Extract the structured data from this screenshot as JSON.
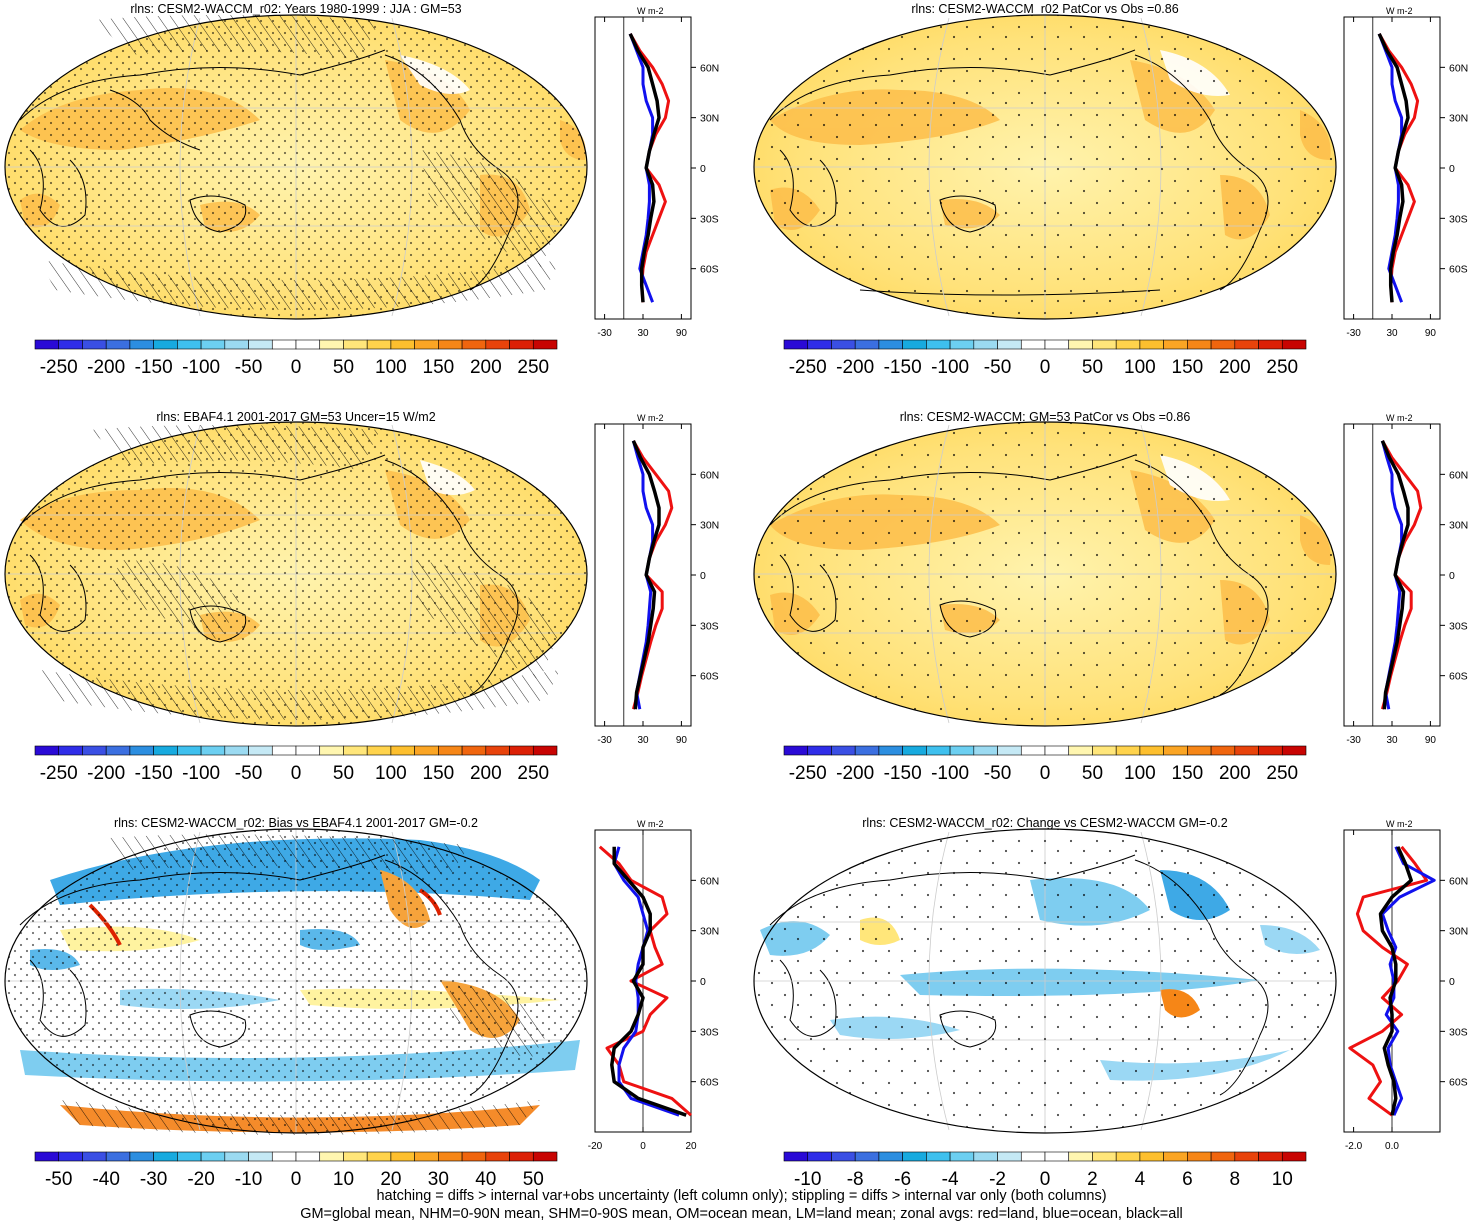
{
  "panels": [
    {
      "title": "rlns: CESM2-WACCM_r02: Years 1980-1999 : JJA : GM=53",
      "kind": "abs",
      "stipple": "dense",
      "hatch": true
    },
    {
      "title": "rlns: CESM2-WACCM_r02 PatCor vs Obs =0.86",
      "kind": "abs",
      "stipple": "sparse",
      "hatch": false
    },
    {
      "title": "rlns: EBAF4.1 2001-2017 GM=53 Uncer=15 W/m2",
      "kind": "abs",
      "stipple": "dense",
      "hatch": true
    },
    {
      "title": "rlns: CESM2-WACCM: GM=53 PatCor vs Obs =0.86",
      "kind": "abs",
      "stipple": "sparse",
      "hatch": false
    },
    {
      "title": "rlns: CESM2-WACCM_r02: Bias vs EBAF4.1 2001-2017 GM=-0.2",
      "kind": "bias",
      "stipple": "dense",
      "hatch": true
    },
    {
      "title": "rlns: CESM2-WACCM_r02: Change vs CESM2-WACCM GM=-0.2",
      "kind": "change",
      "stipple": "sparse",
      "hatch": false
    }
  ],
  "colorbars": {
    "abs": {
      "labels": [
        "-250",
        "-200",
        "-150",
        "-100",
        "-50",
        "0",
        "50",
        "100",
        "150",
        "200",
        "250"
      ],
      "levels": 22
    },
    "bias": {
      "labels": [
        "-50",
        "-40",
        "-30",
        "-20",
        "-10",
        "0",
        "10",
        "20",
        "30",
        "40",
        "50"
      ],
      "levels": 22
    },
    "change": {
      "labels": [
        "-10",
        "-8",
        "-6",
        "-4",
        "-2",
        "0",
        "2",
        "4",
        "6",
        "8",
        "10"
      ],
      "levels": 22
    },
    "colors": [
      "#2a0ad6",
      "#2f2de8",
      "#3a4fe4",
      "#3b6fe0",
      "#2c8ee0",
      "#17aadf",
      "#3ec0ee",
      "#6ccff1",
      "#9bdaf1",
      "#c5e9f5",
      "#ffffff",
      "#ffffff",
      "#fff6b0",
      "#ffe67a",
      "#ffd34c",
      "#fdbf2e",
      "#fba524",
      "#f68617",
      "#f0650e",
      "#e8430b",
      "#dc2006",
      "#c80402"
    ]
  },
  "units": "W m-2",
  "zonal_lat_labels": [
    "60N",
    "30N",
    "0",
    "30S",
    "60S"
  ],
  "zonal_x_ticks": {
    "abs": [
      "-30",
      "30",
      "90"
    ],
    "bias": [
      "-20",
      "0",
      "20"
    ],
    "change": [
      "-2.0",
      "0.0"
    ]
  },
  "series_colors": {
    "land": "#ee1111",
    "ocean": "#1111ee",
    "all": "#000000"
  },
  "footer": [
    "hatching = diffs > internal var+obs uncertainty (left column only); stippling = diffs > internal var only (both columns)",
    "GM=global mean, NHM=0-90N mean, SHM=0-90S mean, OM=ocean mean, LM=land mean; zonal avgs: red=land, blue=ocean, black=all"
  ],
  "chart_data": [
    {
      "type": "line",
      "panel": "zonal-mean-row1",
      "xlabel": "W m-2",
      "latitudes": [
        80,
        70,
        60,
        50,
        40,
        30,
        20,
        10,
        0,
        -10,
        -20,
        -30,
        -40,
        -50,
        -60,
        -70,
        -80
      ],
      "series": [
        {
          "name": "land",
          "values": [
            10,
            25,
            45,
            60,
            70,
            65,
            50,
            40,
            35,
            55,
            65,
            55,
            45,
            35,
            30,
            28,
            30
          ]
        },
        {
          "name": "ocean",
          "values": [
            10,
            20,
            30,
            30,
            35,
            45,
            45,
            40,
            35,
            40,
            40,
            38,
            35,
            30,
            25,
            35,
            45
          ]
        },
        {
          "name": "all",
          "values": [
            10,
            22,
            38,
            45,
            52,
            55,
            47,
            40,
            35,
            45,
            47,
            42,
            38,
            32,
            28,
            28,
            30
          ]
        }
      ]
    },
    {
      "type": "line",
      "panel": "zonal-mean-row2",
      "xlabel": "W m-2",
      "latitudes": [
        80,
        70,
        60,
        50,
        40,
        30,
        20,
        10,
        0,
        -10,
        -20,
        -30,
        -40,
        -50,
        -60,
        -70,
        -80
      ],
      "series": [
        {
          "name": "land",
          "values": [
            15,
            30,
            50,
            70,
            75,
            65,
            50,
            40,
            35,
            60,
            60,
            50,
            42,
            35,
            28,
            22,
            15
          ]
        },
        {
          "name": "ocean",
          "values": [
            15,
            22,
            30,
            30,
            35,
            45,
            45,
            40,
            35,
            42,
            40,
            38,
            35,
            30,
            25,
            20,
            25
          ]
        },
        {
          "name": "all",
          "values": [
            15,
            26,
            40,
            48,
            55,
            55,
            47,
            40,
            35,
            48,
            46,
            42,
            38,
            32,
            26,
            20,
            18
          ]
        }
      ]
    },
    {
      "type": "line",
      "panel": "zonal-mean-row3",
      "xlabel": "W m-2",
      "latitudes": [
        80,
        70,
        60,
        50,
        40,
        30,
        20,
        10,
        0,
        -10,
        -20,
        -30,
        -40,
        -50,
        -60,
        -70,
        -80
      ],
      "series": [
        {
          "name": "land",
          "values": [
            -18,
            -10,
            -5,
            8,
            10,
            3,
            5,
            8,
            -5,
            10,
            3,
            0,
            -15,
            -10,
            -8,
            12,
            20
          ]
        },
        {
          "name": "ocean",
          "values": [
            -10,
            -12,
            -8,
            -2,
            0,
            2,
            0,
            -2,
            -3,
            -2,
            -2,
            -3,
            -8,
            -10,
            -10,
            -5,
            15
          ]
        },
        {
          "name": "all",
          "values": [
            -12,
            -12,
            -6,
            0,
            3,
            3,
            0,
            0,
            -4,
            0,
            -2,
            -5,
            -12,
            -13,
            -12,
            -2,
            18
          ]
        }
      ]
    },
    {
      "type": "line",
      "panel": "zonal-mean-row4",
      "xlabel": "W m-2",
      "latitudes": [
        80,
        70,
        60,
        50,
        40,
        30,
        20,
        10,
        0,
        -10,
        -20,
        -30,
        -40,
        -50,
        -60,
        -70,
        -80
      ],
      "series": [
        {
          "name": "land",
          "values": [
            0.5,
            1.2,
            1.8,
            -1.5,
            -1.8,
            -1.5,
            -0.5,
            0.8,
            0.3,
            -0.5,
            0.5,
            -0.5,
            -2.2,
            -1.0,
            -0.6,
            -1.2,
            0.0
          ]
        },
        {
          "name": "ocean",
          "values": [
            0.2,
            0.6,
            2.2,
            0.4,
            -0.5,
            -0.2,
            0.2,
            -0.1,
            0.1,
            0.1,
            -0.3,
            0.3,
            -0.2,
            -0.1,
            0.2,
            0.5,
            0.1
          ]
        },
        {
          "name": "all",
          "values": [
            0.3,
            0.7,
            1.0,
            0.0,
            -0.6,
            -0.5,
            0.0,
            0.2,
            0.2,
            -0.1,
            0.0,
            0.0,
            -0.4,
            -0.2,
            0.1,
            0.2,
            0.0
          ]
        }
      ]
    }
  ]
}
